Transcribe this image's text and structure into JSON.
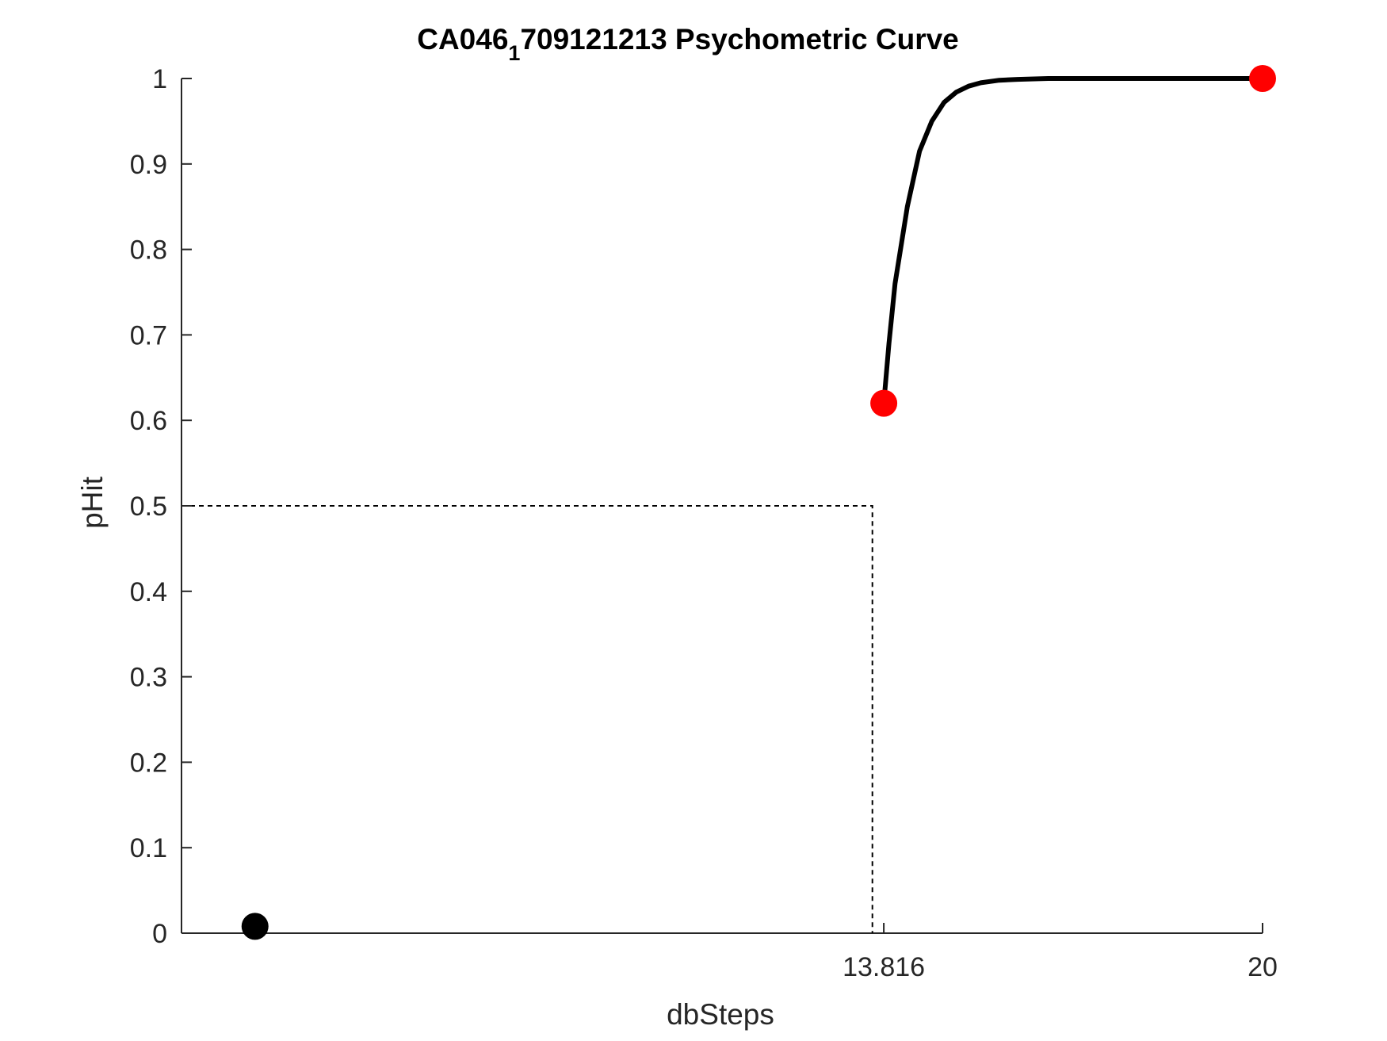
{
  "chart_data": {
    "type": "line",
    "title_main": "CA046",
    "title_sub": "1",
    "title_rest": "709121213 Psychometric Curve",
    "xlabel": "dbSteps",
    "ylabel": "pHit",
    "xlim": [
      2.35,
      20
    ],
    "ylim": [
      0,
      1
    ],
    "xticks": [
      13.816,
      20
    ],
    "xtick_labels": [
      "13.816",
      "20"
    ],
    "yticks": [
      0,
      0.1,
      0.2,
      0.3,
      0.4,
      0.5,
      0.6,
      0.7,
      0.8,
      0.9,
      1
    ],
    "ytick_labels": [
      "0",
      "0.1",
      "0.2",
      "0.3",
      "0.4",
      "0.5",
      "0.6",
      "0.7",
      "0.8",
      "0.9",
      "1"
    ],
    "threshold": {
      "x": 13.63,
      "y": 0.5
    },
    "points": [
      {
        "x": 3.55,
        "y": 0.008,
        "color": "#000000"
      },
      {
        "x": 13.816,
        "y": 0.62,
        "color": "#ff0000"
      },
      {
        "x": 20,
        "y": 1.0,
        "color": "#ff0000"
      }
    ],
    "fit_curve": {
      "x": [
        13.816,
        13.9,
        14.0,
        14.2,
        14.4,
        14.6,
        14.8,
        15.0,
        15.2,
        15.4,
        15.7,
        16.0,
        16.5,
        17.0,
        18.0,
        19.0,
        20.0
      ],
      "y": [
        0.62,
        0.69,
        0.76,
        0.85,
        0.915,
        0.95,
        0.972,
        0.984,
        0.991,
        0.995,
        0.998,
        0.999,
        1.0,
        1.0,
        1.0,
        1.0,
        1.0
      ]
    },
    "grid": false,
    "colors": {
      "curve": "#000000",
      "axis": "#262626",
      "highlight": "#ff0000"
    }
  }
}
